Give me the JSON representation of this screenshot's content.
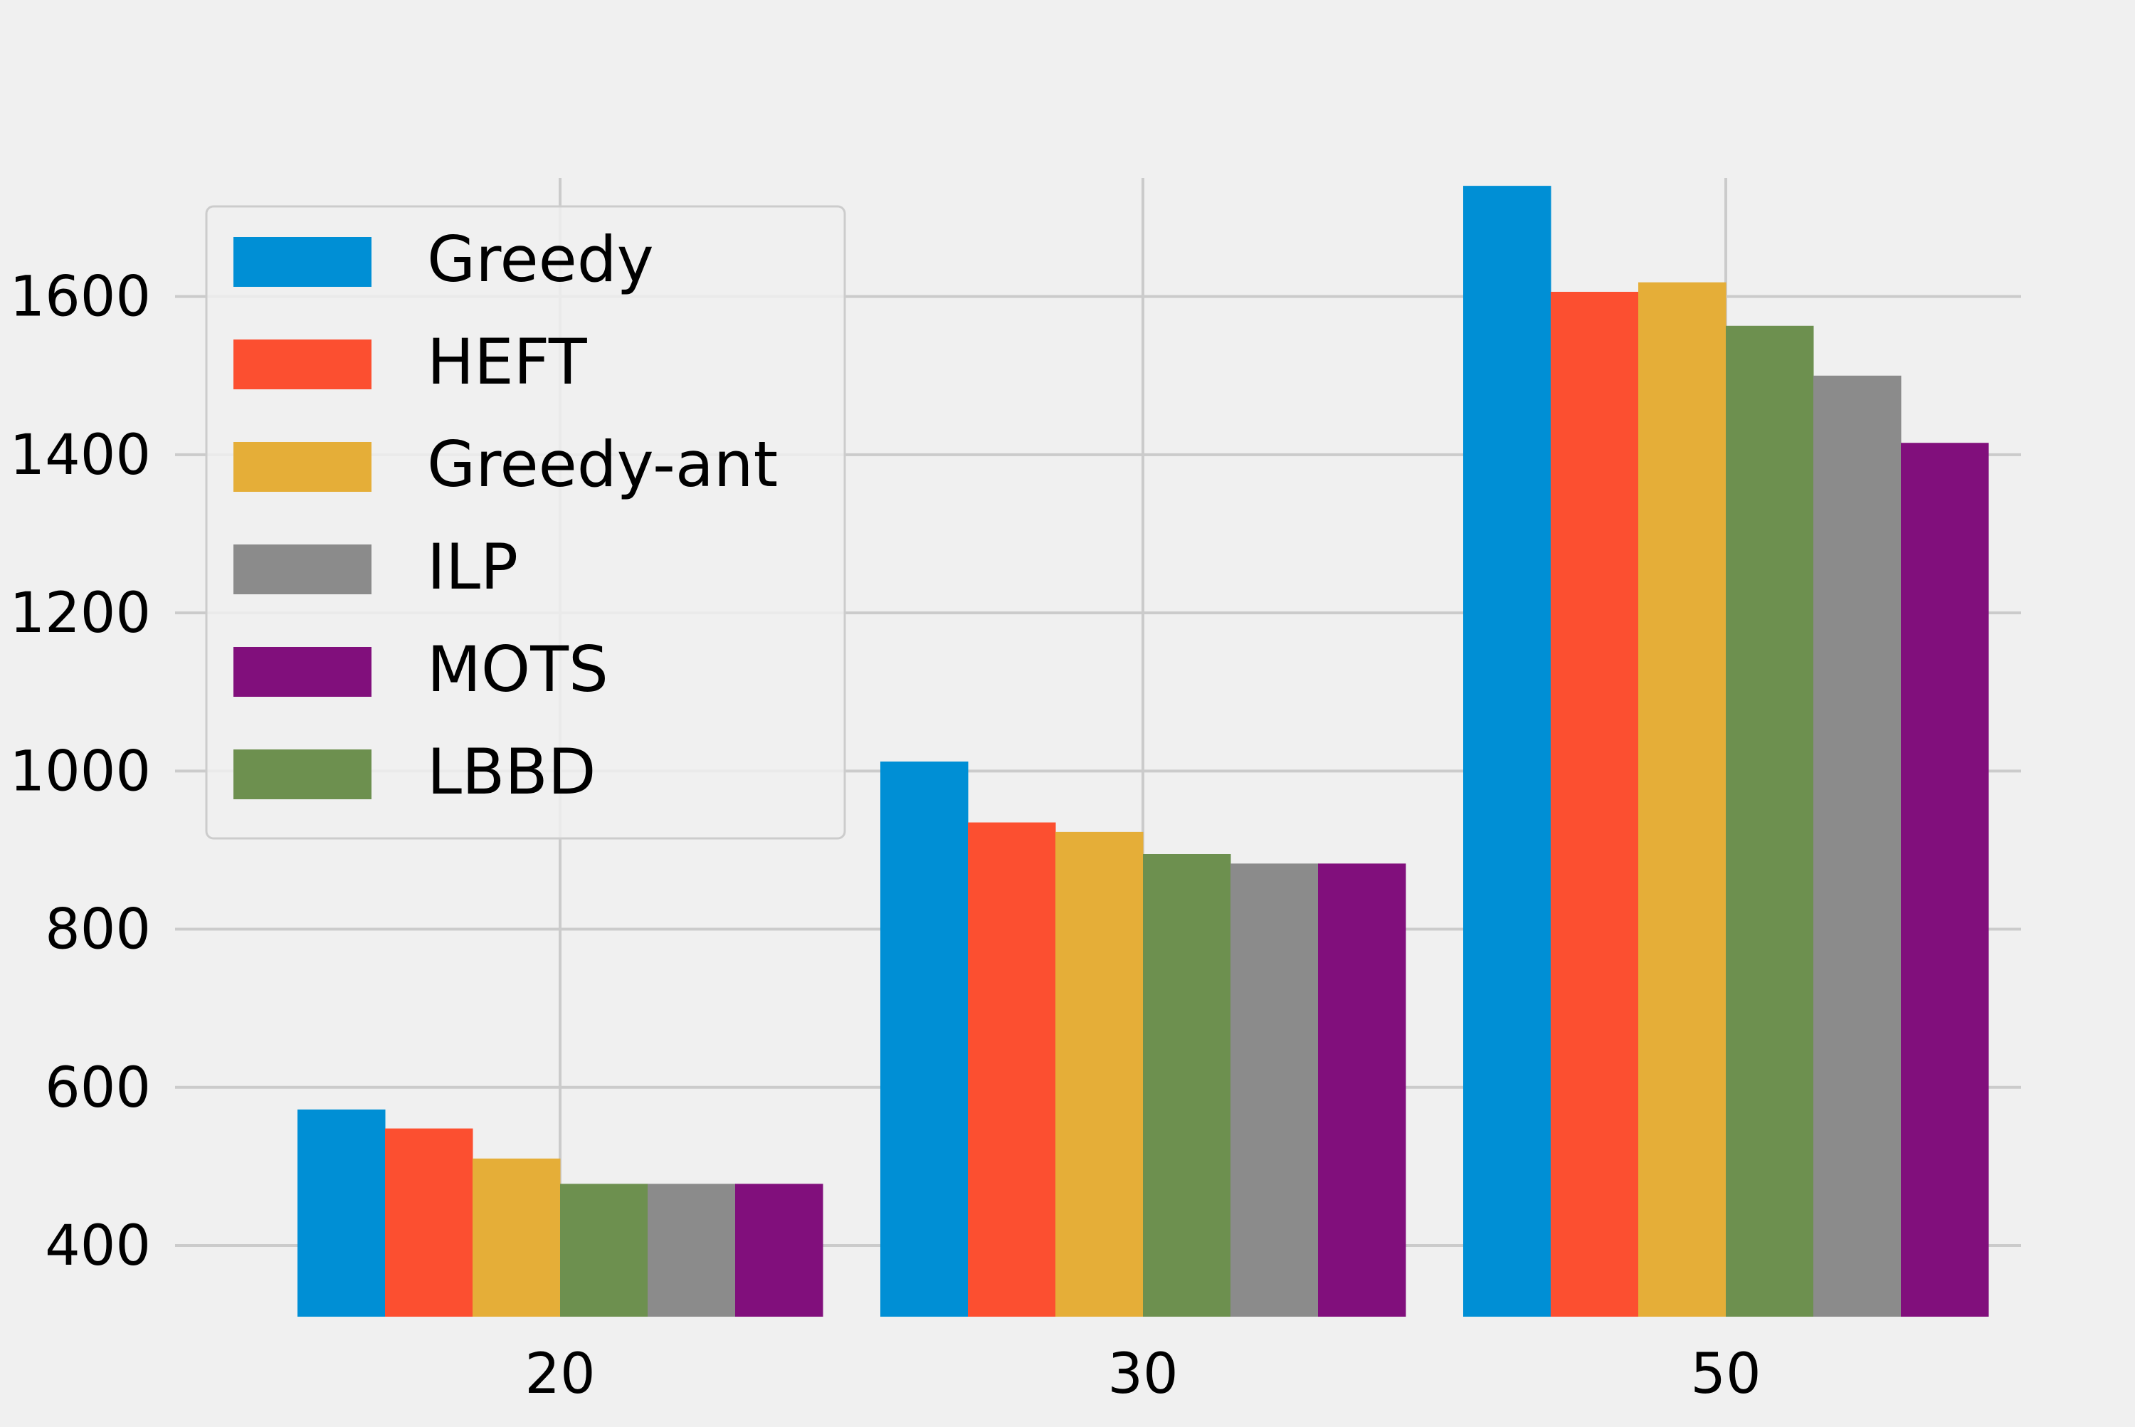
{
  "chart_data": {
    "type": "bar",
    "title": "",
    "xlabel": "",
    "ylabel": "",
    "categories": [
      "20",
      "30",
      "50"
    ],
    "ylim": [
      310,
      1750
    ],
    "yticks": [
      400,
      600,
      800,
      1000,
      1200,
      1400,
      1600
    ],
    "grid": true,
    "legend_position": "top-left",
    "bar_order": [
      "Greedy",
      "HEFT",
      "Greedy-ant",
      "LBBD",
      "ILP",
      "MOTS"
    ],
    "series": [
      {
        "name": "Greedy",
        "color": "#008fd5",
        "values": [
          572,
          1012,
          1740
        ]
      },
      {
        "name": "HEFT",
        "color": "#fc4f30",
        "values": [
          548,
          935,
          1606
        ]
      },
      {
        "name": "Greedy-ant",
        "color": "#e5ae38",
        "values": [
          510,
          923,
          1618
        ]
      },
      {
        "name": "ILP",
        "color": "#8b8b8b",
        "values": [
          478,
          883,
          1500
        ]
      },
      {
        "name": "MOTS",
        "color": "#810f7c",
        "values": [
          478,
          883,
          1415
        ]
      },
      {
        "name": "LBBD",
        "color": "#6d904f",
        "values": [
          478,
          895,
          1563
        ]
      }
    ]
  }
}
